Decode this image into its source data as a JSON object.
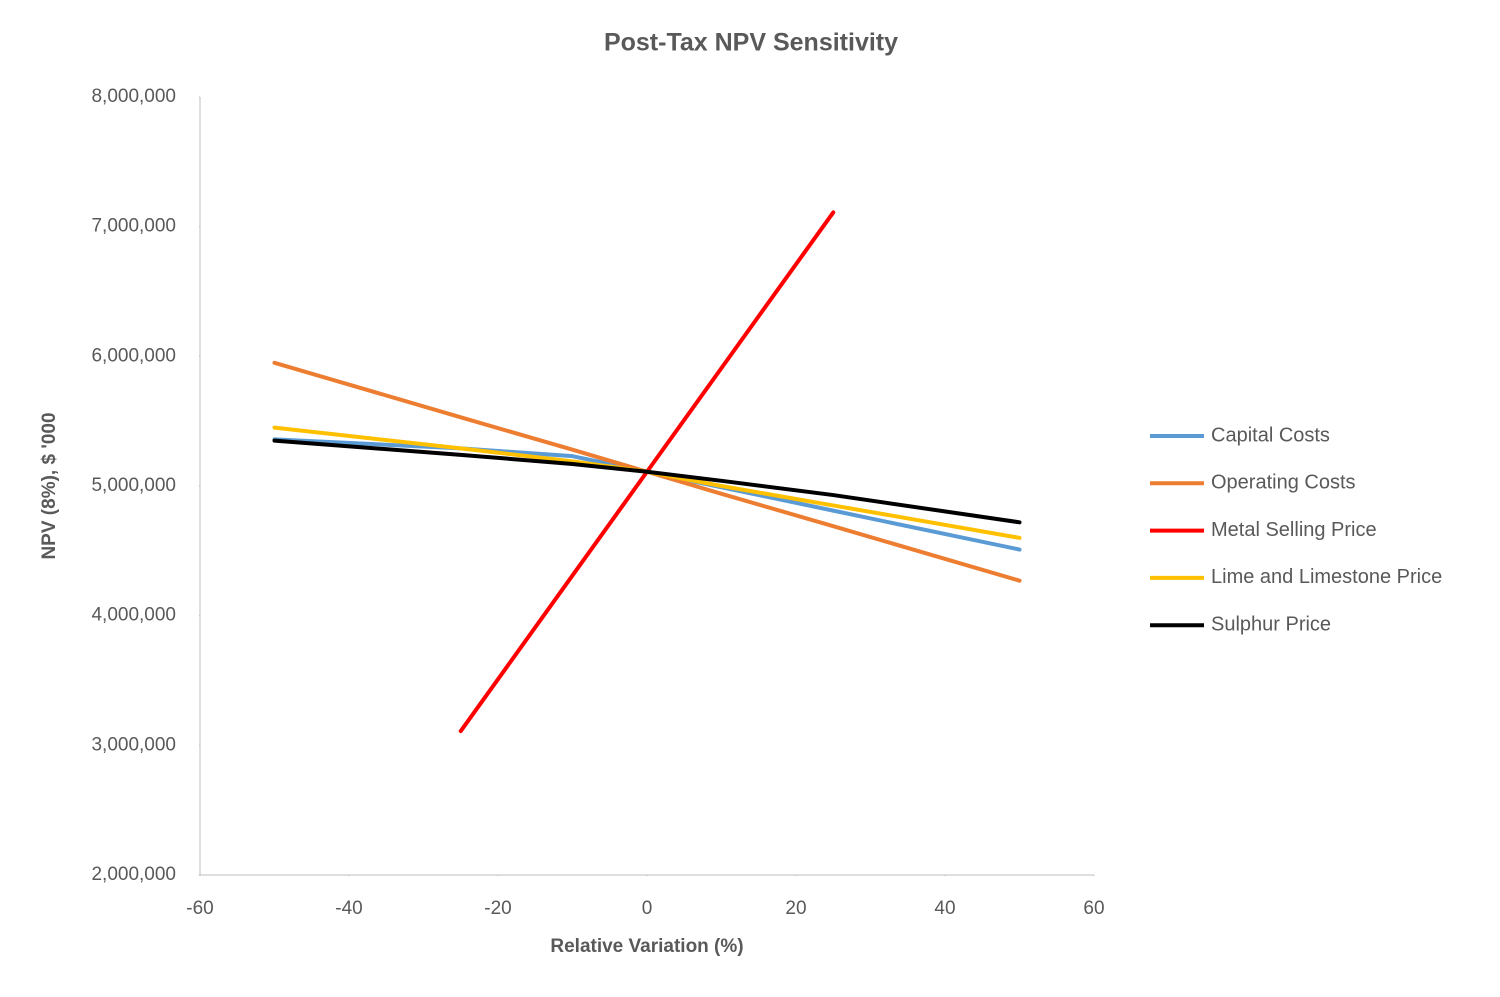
{
  "chart_data": {
    "type": "line",
    "title": "Post-Tax NPV Sensitivity",
    "x_label": "Relative Variation (%)",
    "y_label": "NPV (8%), $ '000",
    "x": [
      -50,
      -25,
      -10,
      0,
      10,
      25,
      50
    ],
    "series": [
      {
        "name": "Capital Costs",
        "color": "#5b9bd5",
        "values": [
          5360000,
          5290000,
          5230000,
          5110000,
          4990000,
          4810000,
          4510000
        ]
      },
      {
        "name": "Operating Costs",
        "color": "#ed7d31",
        "values": [
          5950000,
          5530000,
          5280000,
          5110000,
          4940000,
          4690000,
          4270000
        ]
      },
      {
        "name": "Metal Selling Price",
        "color": "#ff0000",
        "values": [
          null,
          3110000,
          4310000,
          5110000,
          5910000,
          7110000,
          null
        ]
      },
      {
        "name": "Lime and Limestone Price",
        "color": "#ffc000",
        "values": [
          5450000,
          5290000,
          5190000,
          5110000,
          5000000,
          4850000,
          4600000
        ]
      },
      {
        "name": "Sulphur Price",
        "color": "#000000",
        "values": [
          5350000,
          5240000,
          5170000,
          5110000,
          5040000,
          4930000,
          4720000
        ]
      }
    ],
    "xlim": [
      -60,
      60
    ],
    "xticks": [
      -60,
      -40,
      -20,
      0,
      20,
      40,
      60
    ],
    "ylim": [
      2000000,
      8000000
    ],
    "yticks": [
      {
        "value": 2000000,
        "label": "2,000,000"
      },
      {
        "value": 3000000,
        "label": "3,000,000"
      },
      {
        "value": 4000000,
        "label": "4,000,000"
      },
      {
        "value": 5000000,
        "label": "5,000,000"
      },
      {
        "value": 6000000,
        "label": "6,000,000"
      },
      {
        "value": 7000000,
        "label": "7,000,000"
      },
      {
        "value": 8000000,
        "label": "8,000,000"
      }
    ],
    "grid": false,
    "legend": "right"
  }
}
